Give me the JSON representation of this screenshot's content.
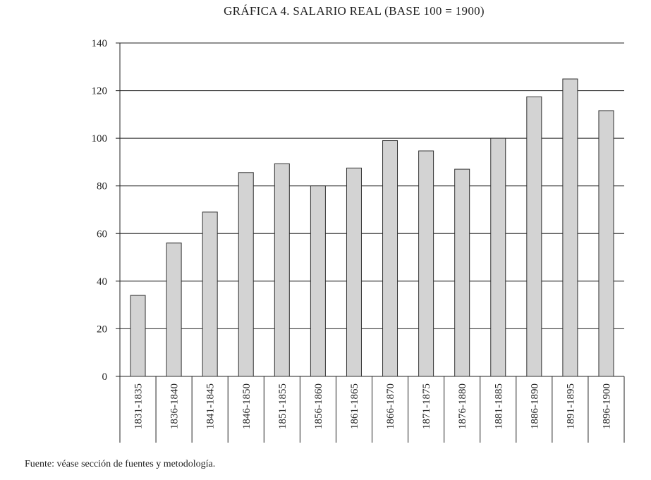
{
  "chart_data": {
    "type": "bar",
    "title": "GRÁFICA 4. SALARIO REAL (BASE 100 = 1900)",
    "xlabel": "",
    "ylabel": "",
    "ylim": [
      0,
      140
    ],
    "yticks": [
      0,
      20,
      40,
      60,
      80,
      100,
      120,
      140
    ],
    "grid": true,
    "categories": [
      "1831-1835",
      "1836-1840",
      "1841-1845",
      "1846-1850",
      "1851-1855",
      "1856-1860",
      "1861-1865",
      "1866-1870",
      "1871-1875",
      "1876-1880",
      "1881-1885",
      "1886-1890",
      "1891-1895",
      "1896-1900"
    ],
    "values": [
      34,
      56,
      69,
      85.6,
      89.3,
      80,
      87.5,
      99,
      94.7,
      87,
      100,
      117.4,
      124.9,
      111.6
    ],
    "colors": {
      "bar": "#d3d3d3",
      "bar_stroke": "#333333",
      "grid": "#222222"
    }
  },
  "footer": {
    "source": "Fuente: véase sección de fuentes y metodología."
  }
}
